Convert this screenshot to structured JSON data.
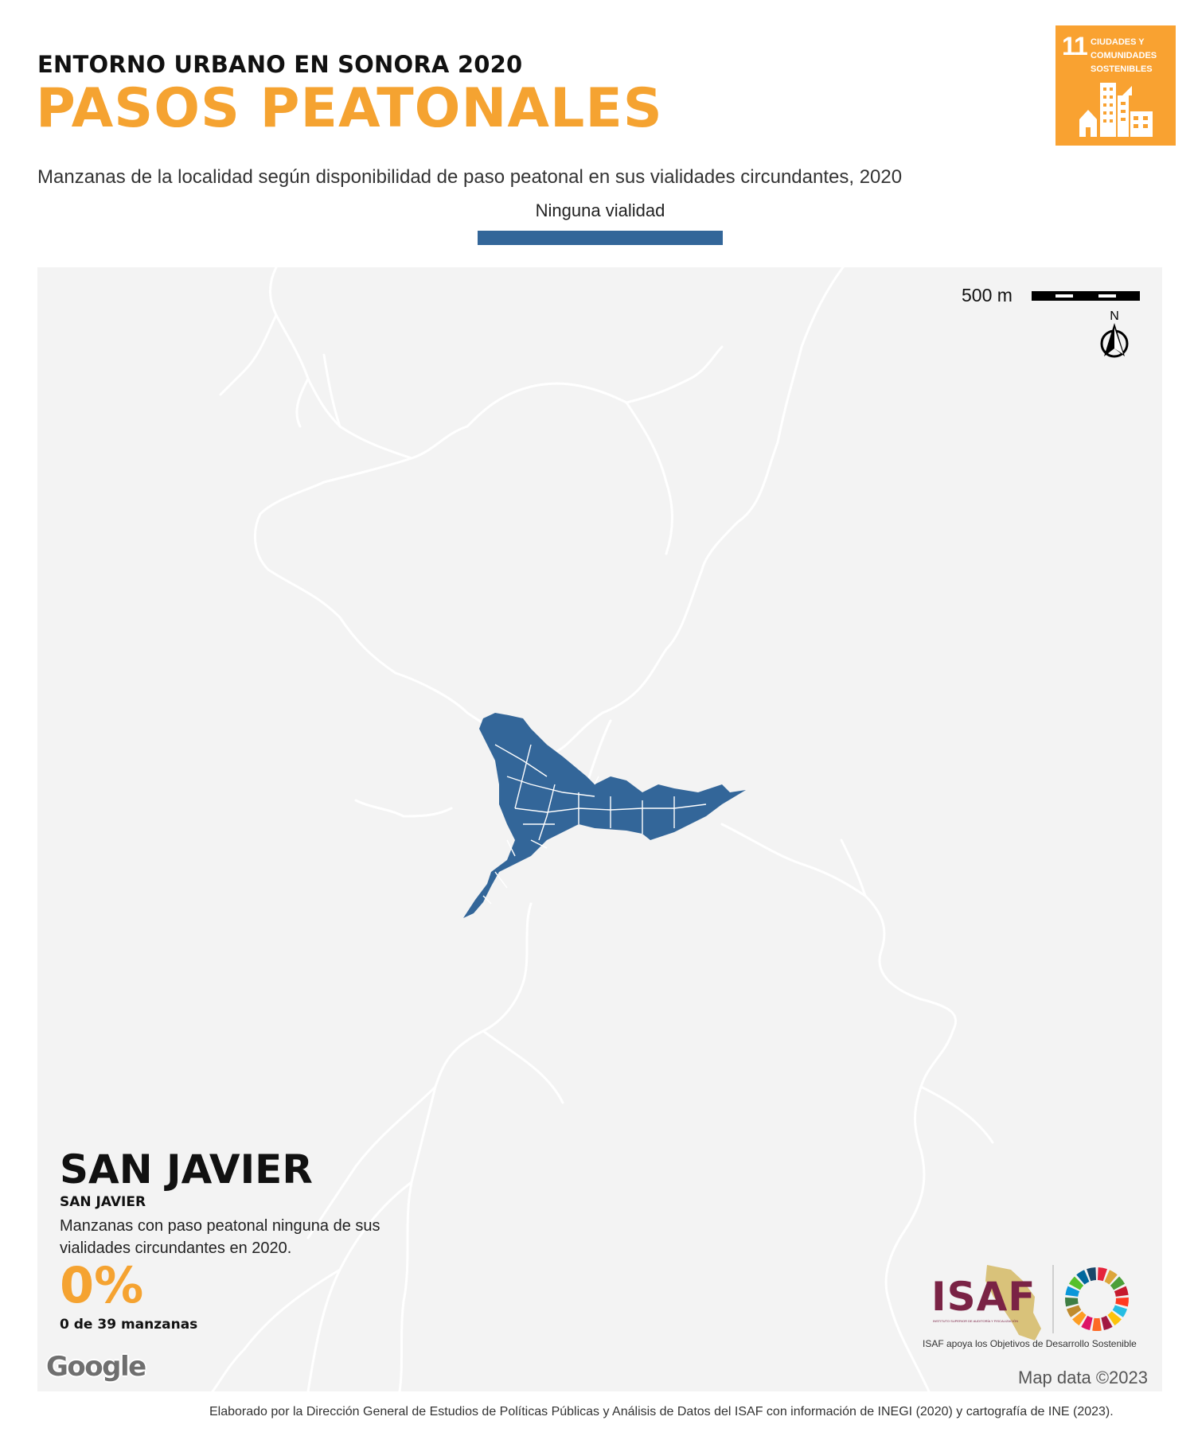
{
  "header": {
    "kicker": "ENTORNO URBANO EN SONORA 2020",
    "title": "PASOS PEATONALES",
    "subtitle": "Manzanas de la localidad según disponibilidad de paso peatonal en sus vialidades circundantes, 2020"
  },
  "legend": {
    "label": "Ninguna vialidad",
    "color": "#336699"
  },
  "sdg_badge": {
    "number": "11",
    "text_lines": [
      "CIUDADES Y",
      "COMUNIDADES",
      "SOSTENIBLES"
    ],
    "color": "#f9a231",
    "icon": "city-buildings-icon"
  },
  "map": {
    "background_color": "#f3f3f3",
    "road_color": "#ffffff",
    "settlement_color": "#336699",
    "scale_label": "500 m",
    "north_label": "N",
    "attribution": "Map data ©2023",
    "provider_logo": "Google"
  },
  "place": {
    "municipality": "SAN JAVIER",
    "locality": "SAN JAVIER",
    "description": "Manzanas con paso peatonal ninguna de sus vialidades circundantes en 2020.",
    "percent": "0%",
    "count_text": "0 de 39 manzanas"
  },
  "logos": {
    "isaf_text": "ISAF",
    "isaf_small": "INSTITUTO SUPERIOR DE AUDITORÍA Y FISCALIZACIÓN",
    "isaf_caption": "ISAF apoya los Objetivos de Desarrollo Sostenible",
    "isaf_color": "#7a2345",
    "sdg_wheel_colors": [
      "#e5243b",
      "#dda63a",
      "#4c9f38",
      "#c5192d",
      "#ff3a21",
      "#26bde2",
      "#fcc30b",
      "#a21942",
      "#fd6925",
      "#dd1367",
      "#fd9d24",
      "#bf8b2e",
      "#3f7e44",
      "#0a97d9",
      "#56c02b",
      "#00689d",
      "#19486a"
    ]
  },
  "footer": {
    "credits": "Elaborado por la Dirección General de Estudios de Políticas Públicas y Análisis de Datos del ISAF con información de INEGI (2020) y cartografía de INE (2023)."
  }
}
